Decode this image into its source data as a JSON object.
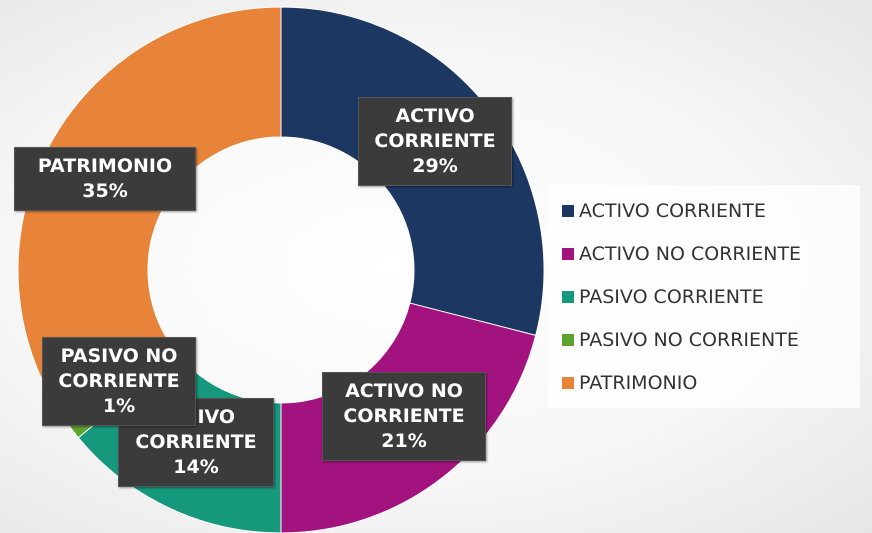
{
  "chart_data": {
    "type": "donut",
    "categories": [
      "ACTIVO CORRIENTE",
      "ACTIVO NO CORRIENTE",
      "PASIVO CORRIENTE",
      "PASIVO NO CORRIENTE",
      "PATRIMONIO"
    ],
    "values": [
      29,
      21,
      14,
      1,
      35
    ],
    "value_labels": [
      "29%",
      "21%",
      "14%",
      "1%",
      "35%"
    ],
    "colors": [
      "#1c3862",
      "#a3137f",
      "#16987c",
      "#5fa32e",
      "#e8833a"
    ],
    "legend": "right"
  }
}
